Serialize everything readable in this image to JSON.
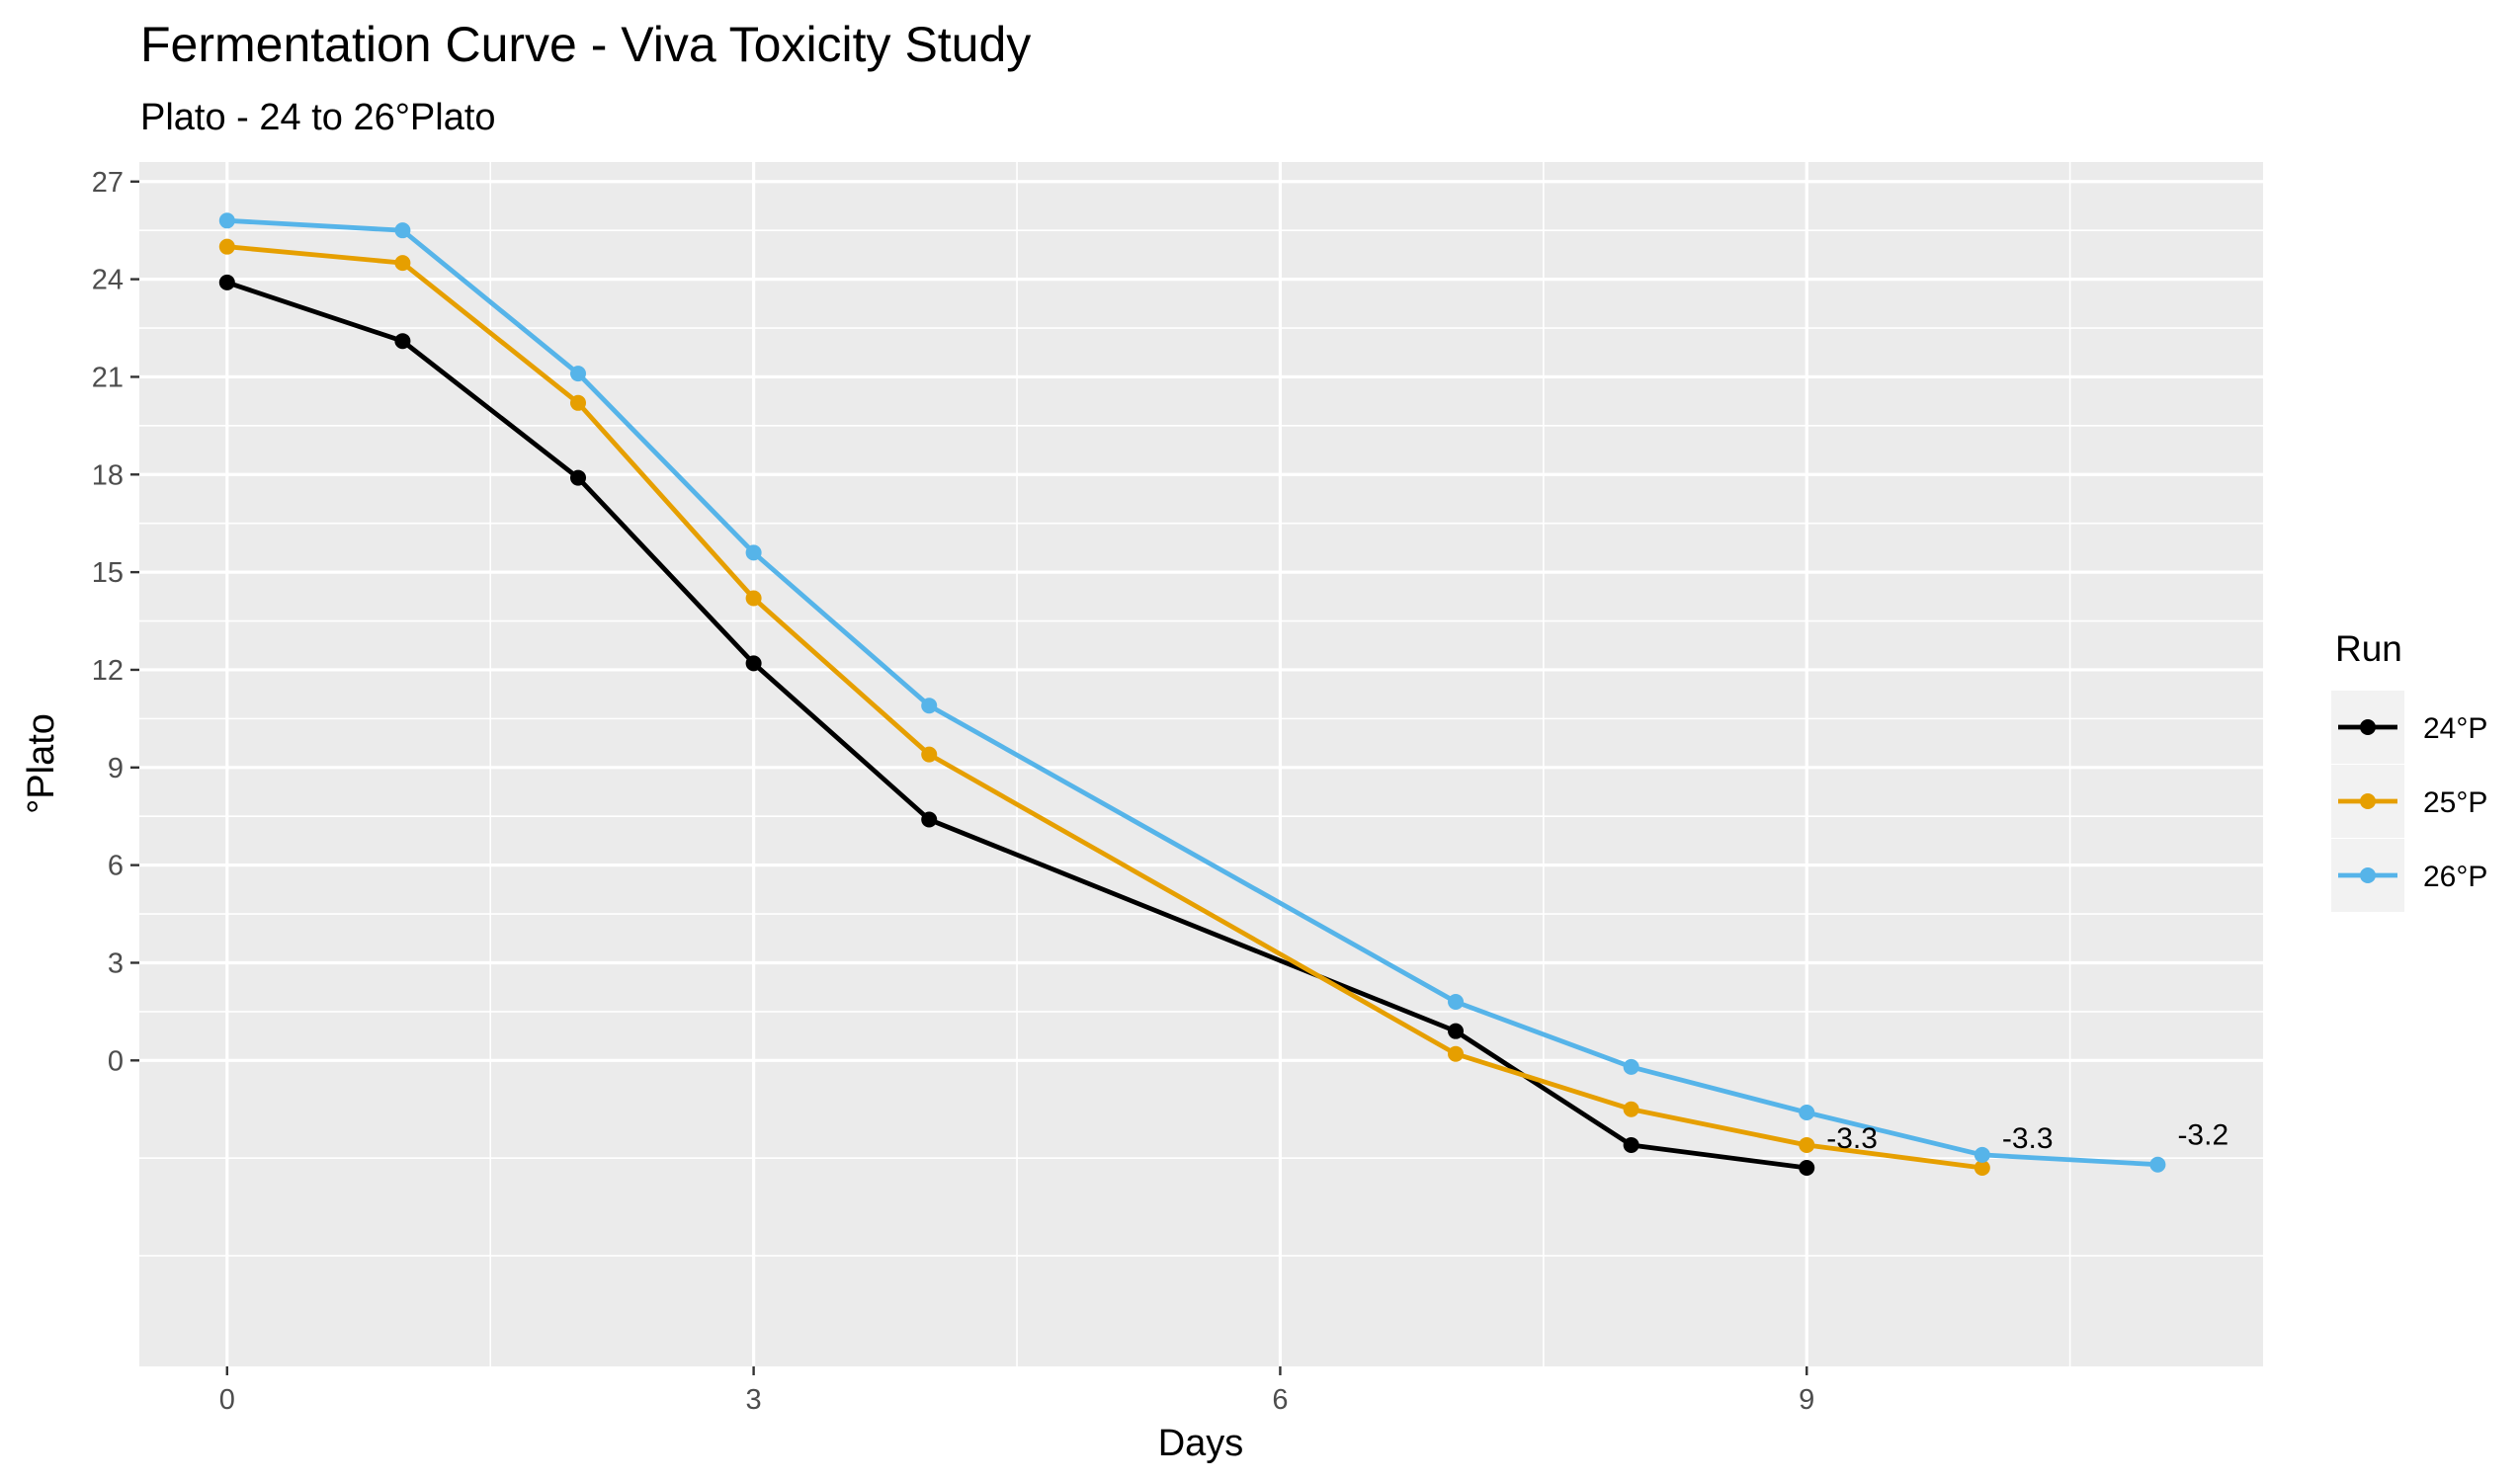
{
  "chart_data": {
    "type": "line",
    "title": "Fermentation Curve - Viva Toxicity Study",
    "subtitle": "Plato - 24 to 26°Plato",
    "xlabel": "Days",
    "ylabel": "°Plato",
    "xlim": [
      -0.5,
      11.6
    ],
    "ylim": [
      -9.4,
      27.6
    ],
    "x_ticks": [
      0,
      3,
      6,
      9
    ],
    "y_ticks": [
      0,
      3,
      6,
      9,
      12,
      15,
      18,
      21,
      24,
      27
    ],
    "y_minor_ticks": [
      -3,
      -6,
      1.5,
      4.5,
      7.5,
      10.5,
      13.5,
      16.5,
      19.5,
      22.5,
      25.5
    ],
    "x_minor_ticks": [
      1.5,
      4.5,
      7.5,
      10.5
    ],
    "grid": true,
    "legend": {
      "title": "Run",
      "placement": "right"
    },
    "series": [
      {
        "name": "24°P",
        "color": "#000000",
        "x": [
          0,
          1,
          2,
          3,
          4,
          7,
          8,
          9
        ],
        "y": [
          23.9,
          22.1,
          17.9,
          12.2,
          7.4,
          0.9,
          -2.6,
          -3.3
        ]
      },
      {
        "name": "25°P",
        "color": "#E69F00",
        "x": [
          0,
          1,
          2,
          3,
          4,
          7,
          8,
          9,
          10
        ],
        "y": [
          25.0,
          24.5,
          20.2,
          14.2,
          9.4,
          0.2,
          -1.5,
          -2.6,
          -3.3
        ]
      },
      {
        "name": "26°P",
        "color": "#56B4E9",
        "x": [
          0,
          1,
          2,
          3,
          4,
          7,
          8,
          9,
          10,
          11
        ],
        "y": [
          25.8,
          25.5,
          21.1,
          15.6,
          10.9,
          1.8,
          -0.2,
          -1.6,
          -2.9,
          -3.2
        ]
      }
    ],
    "annotations": [
      {
        "x": 9,
        "y": -3.3,
        "text": "-3.3",
        "series": "24°P"
      },
      {
        "x": 10,
        "y": -3.3,
        "text": "-3.3",
        "series": "25°P"
      },
      {
        "x": 11,
        "y": -3.2,
        "text": "-3.2",
        "series": "26°P"
      }
    ]
  }
}
